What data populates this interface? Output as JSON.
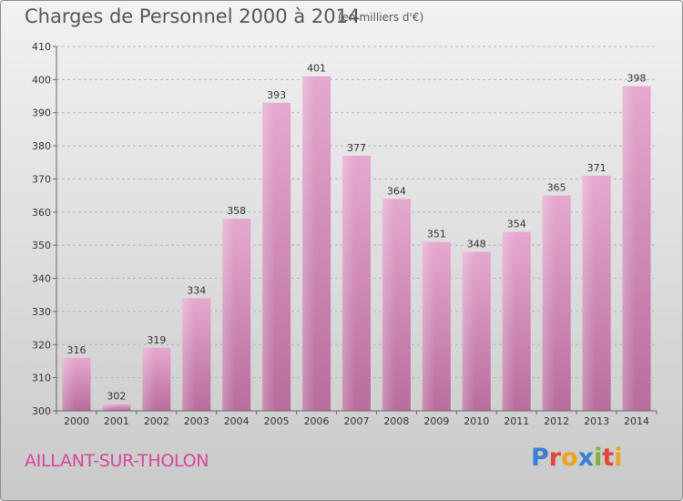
{
  "header": {
    "title": "Charges de Personnel 2000 à 2014",
    "subtitle": "(en milliers d'€)"
  },
  "footer": {
    "place": "AILLANT-SUR-THOLON",
    "logo_letters": [
      {
        "ch": "P",
        "color": "#3a7fd0"
      },
      {
        "ch": "r",
        "color": "#e0483a"
      },
      {
        "ch": "o",
        "color": "#f0a020"
      },
      {
        "ch": "x",
        "color": "#3a7fd0"
      },
      {
        "ch": "i",
        "color": "#7ab53a"
      },
      {
        "ch": "t",
        "color": "#e0483a"
      },
      {
        "ch": "i",
        "color": "#f0a020"
      }
    ]
  },
  "chart_data": {
    "type": "bar",
    "title": "Charges de Personnel 2000 à 2014",
    "subtitle": "(en milliers d'€)",
    "categories": [
      "2000",
      "2001",
      "2002",
      "2003",
      "2004",
      "2005",
      "2006",
      "2007",
      "2008",
      "2009",
      "2010",
      "2011",
      "2012",
      "2013",
      "2014"
    ],
    "values": [
      316,
      302,
      319,
      334,
      358,
      393,
      401,
      377,
      364,
      351,
      348,
      354,
      365,
      371,
      398
    ],
    "ylim": [
      300,
      410
    ],
    "yticks": [
      300,
      310,
      320,
      330,
      340,
      350,
      360,
      370,
      380,
      390,
      400,
      410
    ],
    "grid": true,
    "bar_color": "#d98cbf"
  }
}
